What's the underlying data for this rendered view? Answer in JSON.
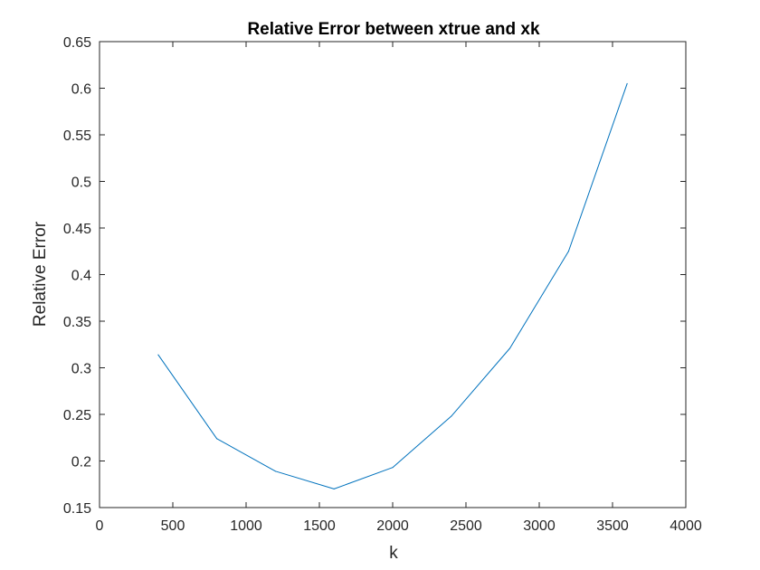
{
  "chart_data": {
    "type": "line",
    "title": "Relative Error between xtrue and xk",
    "xlabel": "k",
    "ylabel": "Relative Error",
    "xlim": [
      0,
      4000
    ],
    "ylim": [
      0.15,
      0.65
    ],
    "xticks": [
      0,
      500,
      1000,
      1500,
      2000,
      2500,
      3000,
      3500,
      4000
    ],
    "yticks": [
      0.15,
      0.2,
      0.25,
      0.3,
      0.35,
      0.4,
      0.45,
      0.5,
      0.55,
      0.6,
      0.65
    ],
    "xtick_labels": [
      "0",
      "500",
      "1000",
      "1500",
      "2000",
      "2500",
      "3000",
      "3500",
      "4000"
    ],
    "ytick_labels": [
      "0.15",
      "0.2",
      "0.25",
      "0.3",
      "0.35",
      "0.4",
      "0.45",
      "0.5",
      "0.55",
      "0.6",
      "0.65"
    ],
    "grid": false,
    "legend": "none",
    "line_color": "#0072BD",
    "series": [
      {
        "x": [
          400,
          800,
          1200,
          1600,
          2000,
          2400,
          2800,
          3200,
          3600
        ],
        "y": [
          0.314,
          0.224,
          0.189,
          0.17,
          0.193,
          0.248,
          0.321,
          0.425,
          0.605
        ]
      }
    ]
  }
}
